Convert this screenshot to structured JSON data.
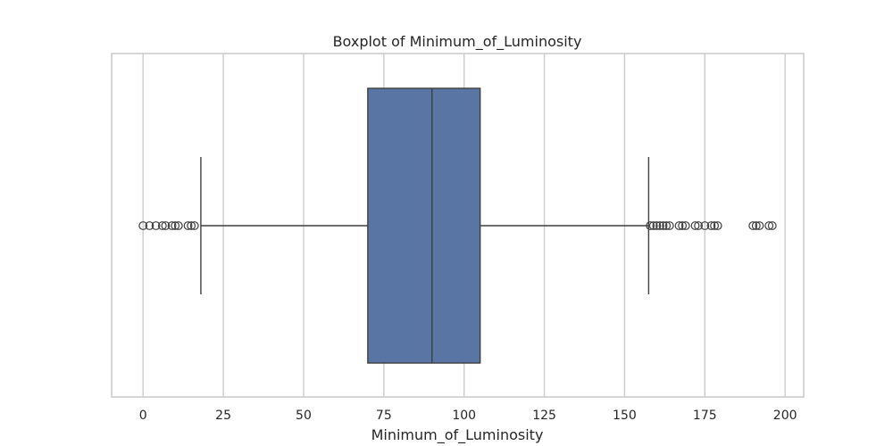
{
  "chart_data": {
    "type": "boxplot",
    "orientation": "horizontal",
    "title": "Boxplot of Minimum_of_Luminosity",
    "xlabel": "Minimum_of_Luminosity",
    "ylabel": "",
    "xlim": [
      -9.8,
      205.8
    ],
    "xticks": [
      0,
      25,
      50,
      75,
      100,
      125,
      150,
      175,
      200
    ],
    "grid": "x-only",
    "box": {
      "whisker_low": 18,
      "q1": 70,
      "median": 90,
      "q3": 105,
      "whisker_high": 157.5
    },
    "outliers_low": [
      0,
      2,
      4,
      6,
      7,
      9,
      10,
      11,
      14,
      15,
      16
    ],
    "outliers_high": [
      158,
      159,
      160,
      161,
      162,
      163,
      164,
      167,
      168,
      169,
      172,
      173,
      175,
      177,
      178,
      179,
      190,
      191,
      192,
      195,
      196
    ],
    "colors": {
      "box_fill": "#5975a4",
      "line": "#3f3f3f",
      "grid": "#cccccc",
      "frame": "#cccccc"
    }
  }
}
